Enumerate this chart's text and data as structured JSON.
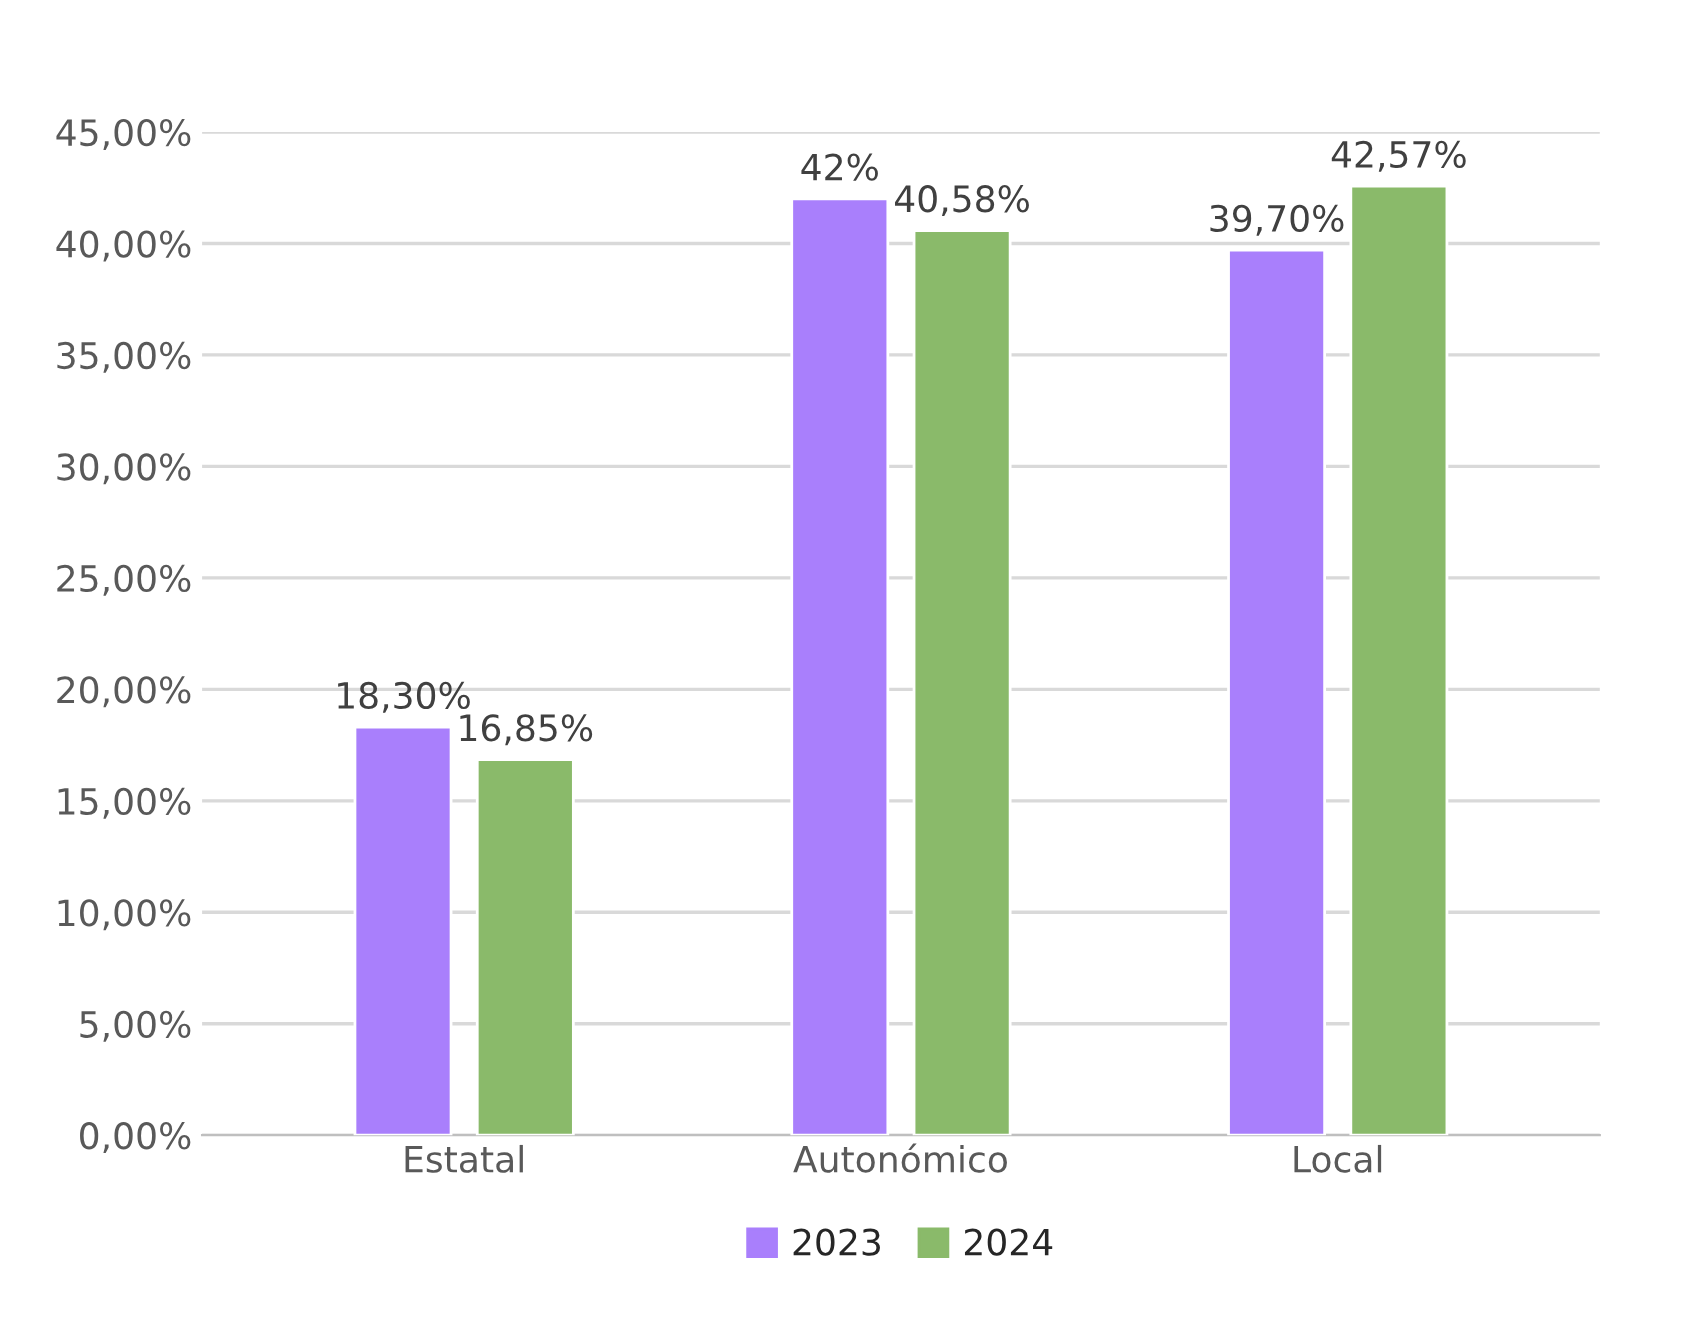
{
  "chart_data": {
    "type": "bar",
    "categories": [
      "Estatal",
      "Autonómico",
      "Local"
    ],
    "series": [
      {
        "name": "2023",
        "color": "#a97ffc",
        "values": [
          18.3,
          42,
          39.7
        ],
        "value_labels": [
          "18,30%",
          "42%",
          "39,70%"
        ]
      },
      {
        "name": "2024",
        "color": "#8aba6a",
        "values": [
          16.85,
          40.58,
          42.57
        ],
        "value_labels": [
          "16,85%",
          "40,58%",
          "42,57%"
        ]
      }
    ],
    "ylim": [
      0,
      45
    ],
    "yticks": [
      {
        "value": 0,
        "label": "0,00%"
      },
      {
        "value": 5,
        "label": "5,00%"
      },
      {
        "value": 10,
        "label": "10,00%"
      },
      {
        "value": 15,
        "label": "15,00%"
      },
      {
        "value": 20,
        "label": "20,00%"
      },
      {
        "value": 25,
        "label": "25,00%"
      },
      {
        "value": 30,
        "label": "30,00%"
      },
      {
        "value": 35,
        "label": "35,00%"
      },
      {
        "value": 40,
        "label": "40,00%"
      },
      {
        "value": 45,
        "label": "45,00%"
      }
    ],
    "grid": "y",
    "legend": "bottom"
  }
}
